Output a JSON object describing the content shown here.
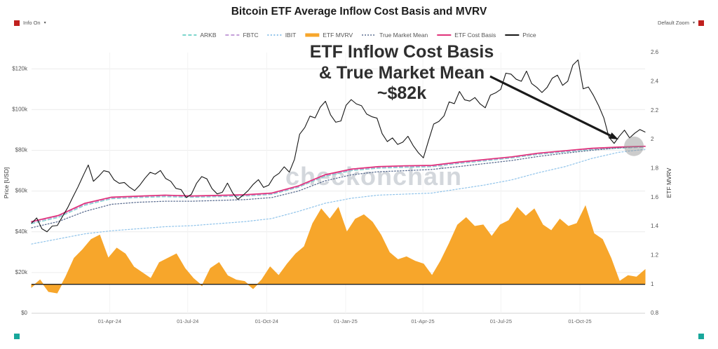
{
  "header": {
    "title": "Bitcoin ETF Average Inflow Cost Basis and MVRV"
  },
  "controls": {
    "info_label": "Info On",
    "zoom_label": "Default Zoom",
    "caret": "▾"
  },
  "watermark": {
    "text": "checkonchain"
  },
  "annotation": {
    "line1": "ETF Inflow Cost Basis",
    "line2": "& True Market Mean",
    "line3": "~$82k"
  },
  "chart_data": {
    "type": "line",
    "title": "Bitcoin ETF Average Inflow Cost Basis and MVRV",
    "x_axis": {
      "start_day": 0,
      "end_day": 715,
      "note": "days since 01-Jan-2024, series evenly spaced"
    },
    "left_axis_range": [
      0,
      128
    ],
    "right_axis_range": [
      0.8,
      2.6
    ],
    "axes": {
      "left_title": "Price [USD]",
      "right_title": "ETF MVRV",
      "left_ticks": [
        {
          "label": "$0",
          "value": 0
        },
        {
          "label": "$20k",
          "value": 20
        },
        {
          "label": "$40k",
          "value": 40
        },
        {
          "label": "$60k",
          "value": 60
        },
        {
          "label": "$80k",
          "value": 80
        },
        {
          "label": "$100k",
          "value": 100
        },
        {
          "label": "$120k",
          "value": 120
        }
      ],
      "right_ticks": [
        {
          "label": "0.8",
          "value": 0.8
        },
        {
          "label": "1",
          "value": 1
        },
        {
          "label": "1.2",
          "value": 1.2
        },
        {
          "label": "1.4",
          "value": 1.4
        },
        {
          "label": "1.6",
          "value": 1.6
        },
        {
          "label": "1.8",
          "value": 1.8
        },
        {
          "label": "2",
          "value": 2
        },
        {
          "label": "2.2",
          "value": 2.2
        },
        {
          "label": "2.4",
          "value": 2.4
        },
        {
          "label": "2.6",
          "value": 2.6
        }
      ],
      "x_ticks": [
        {
          "label": "01-Apr-24",
          "day": 91
        },
        {
          "label": "01-Jul-24",
          "day": 182
        },
        {
          "label": "01-Oct-24",
          "day": 274
        },
        {
          "label": "01-Jan-25",
          "day": 366
        },
        {
          "label": "01-Apr-25",
          "day": 456
        },
        {
          "label": "01-Jul-25",
          "day": 547
        },
        {
          "label": "01-Oct-25",
          "day": 639
        }
      ]
    },
    "baseline": {
      "axis": "right",
      "value": 1,
      "color": "#1f1f1f"
    },
    "highlight_marker": {
      "day": 702,
      "price_k": 82,
      "radius": 14,
      "color": "#8d8d8d",
      "opacity": 0.45
    },
    "series": [
      {
        "name": "ETF MVRV",
        "legend_order": 3,
        "axis": "right",
        "type": "area",
        "area_baseline": 1,
        "color": "#F7A62B",
        "width": 1,
        "dash": null,
        "x_start_day": 0,
        "x_end_day": 715,
        "values": [
          0.98,
          1.03,
          0.95,
          0.94,
          1.05,
          1.18,
          1.24,
          1.31,
          1.34,
          1.18,
          1.25,
          1.21,
          1.12,
          1.08,
          1.04,
          1.15,
          1.18,
          1.21,
          1.11,
          1.04,
          0.99,
          1.11,
          1.15,
          1.06,
          1.03,
          1.02,
          0.97,
          1.03,
          1.12,
          1.06,
          1.14,
          1.21,
          1.26,
          1.42,
          1.52,
          1.45,
          1.53,
          1.36,
          1.45,
          1.48,
          1.43,
          1.34,
          1.22,
          1.17,
          1.19,
          1.16,
          1.14,
          1.06,
          1.16,
          1.28,
          1.41,
          1.46,
          1.4,
          1.41,
          1.33,
          1.41,
          1.44,
          1.53,
          1.47,
          1.52,
          1.41,
          1.37,
          1.45,
          1.4,
          1.42,
          1.54,
          1.35,
          1.31,
          1.18,
          1.02,
          1.06,
          1.05,
          1.1
        ]
      },
      {
        "name": "ARKB",
        "legend_order": 0,
        "axis": "left",
        "type": "line",
        "color": "#7BD5CC",
        "width": 1.2,
        "dash": "5,3",
        "x_start_day": 0,
        "x_end_day": 715,
        "values": [
          44.0,
          47.0,
          53.0,
          56.2,
          56.8,
          57.2,
          56.9,
          57.2,
          57.5,
          58.3,
          61.8,
          67.2,
          70.0,
          71.2,
          71.6,
          71.9,
          73.5,
          74.8,
          76.2,
          78.0,
          79.2,
          80.4,
          81.0,
          81.5
        ]
      },
      {
        "name": "FBTC",
        "legend_order": 1,
        "axis": "left",
        "type": "line",
        "color": "#C59FD9",
        "width": 1.2,
        "dash": "5,3",
        "x_start_day": 0,
        "x_end_day": 715,
        "values": [
          44.5,
          47.5,
          53.5,
          56.6,
          57.1,
          57.6,
          57.2,
          57.5,
          57.8,
          58.6,
          62.1,
          67.6,
          70.4,
          71.6,
          72.0,
          72.2,
          73.8,
          75.1,
          76.5,
          78.3,
          79.5,
          80.7,
          81.3,
          81.7
        ]
      },
      {
        "name": "IBIT",
        "legend_order": 2,
        "axis": "left",
        "type": "line",
        "color": "#8FC3EA",
        "width": 1.2,
        "dash": "2,2.5",
        "x_start_day": 0,
        "x_end_day": 715,
        "values": [
          34.0,
          36.5,
          39.0,
          40.5,
          41.5,
          42.5,
          43.0,
          44.0,
          45.0,
          46.5,
          50.0,
          54.0,
          56.5,
          58.0,
          58.5,
          59.0,
          61.0,
          63.0,
          65.5,
          69.0,
          72.0,
          76.0,
          79.0,
          80.5
        ]
      },
      {
        "name": "True Market Mean",
        "legend_order": 4,
        "axis": "left",
        "type": "line",
        "color": "#5C6E91",
        "width": 1.3,
        "dash": "1.5,2.5",
        "x_start_day": 0,
        "x_end_day": 715,
        "values": [
          42.0,
          45.0,
          50.0,
          53.5,
          54.5,
          55.0,
          55.0,
          55.4,
          55.8,
          56.8,
          60.0,
          65.0,
          68.0,
          69.5,
          70.0,
          70.6,
          72.0,
          73.5,
          75.0,
          77.0,
          78.6,
          80.0,
          81.2,
          82.0
        ]
      },
      {
        "name": "ETF Cost Basis",
        "legend_order": 5,
        "axis": "left",
        "type": "line",
        "color": "#E0327A",
        "width": 1.7,
        "dash": null,
        "x_start_day": 0,
        "x_end_day": 715,
        "values": [
          45.0,
          48.0,
          54.0,
          57.0,
          57.5,
          58.0,
          57.6,
          57.9,
          58.2,
          59.0,
          62.5,
          68.0,
          70.8,
          72.0,
          72.4,
          72.6,
          74.2,
          75.5,
          76.8,
          78.6,
          79.8,
          81.0,
          81.6,
          82.0
        ]
      },
      {
        "name": "Price",
        "legend_order": 6,
        "axis": "left",
        "type": "line",
        "color": "#161616",
        "width": 1.1,
        "dash": null,
        "x_start_day": 0,
        "x_end_day": 715,
        "values": [
          44.2,
          46.8,
          41.5,
          40.0,
          42.8,
          43.1,
          47.5,
          51.8,
          57.0,
          62.0,
          67.5,
          72.8,
          64.8,
          67.2,
          70.0,
          69.4,
          65.5,
          63.8,
          64.2,
          61.9,
          60.2,
          62.9,
          66.3,
          69.2,
          68.3,
          70.1,
          66.2,
          64.8,
          61.3,
          60.7,
          56.8,
          58.4,
          63.8,
          67.1,
          66.0,
          61.2,
          58.6,
          59.4,
          63.9,
          59.1,
          55.9,
          57.9,
          60.2,
          63.3,
          65.6,
          61.8,
          62.9,
          67.0,
          68.7,
          71.9,
          69.3,
          75.6,
          87.9,
          91.2,
          96.8,
          95.9,
          101.2,
          104.1,
          97.4,
          93.8,
          94.4,
          102.1,
          104.9,
          102.8,
          101.9,
          97.8,
          96.5,
          95.8,
          88.2,
          84.3,
          86.1,
          82.9,
          84.0,
          86.9,
          82.4,
          78.9,
          76.3,
          84.8,
          92.9,
          94.2,
          96.9,
          103.8,
          102.9,
          108.9,
          104.8,
          104.2,
          105.9,
          102.8,
          100.9,
          107.1,
          108.2,
          109.9,
          117.9,
          117.4,
          114.9,
          113.9,
          118.9,
          112.8,
          110.9,
          108.4,
          110.9,
          115.4,
          116.9,
          111.9,
          113.9,
          121.9,
          124.4,
          110.2,
          111.1,
          106.9,
          101.9,
          95.9,
          86.4,
          83.4,
          86.9,
          89.9,
          86.1,
          88.4,
          90.2,
          89.0
        ]
      }
    ]
  }
}
